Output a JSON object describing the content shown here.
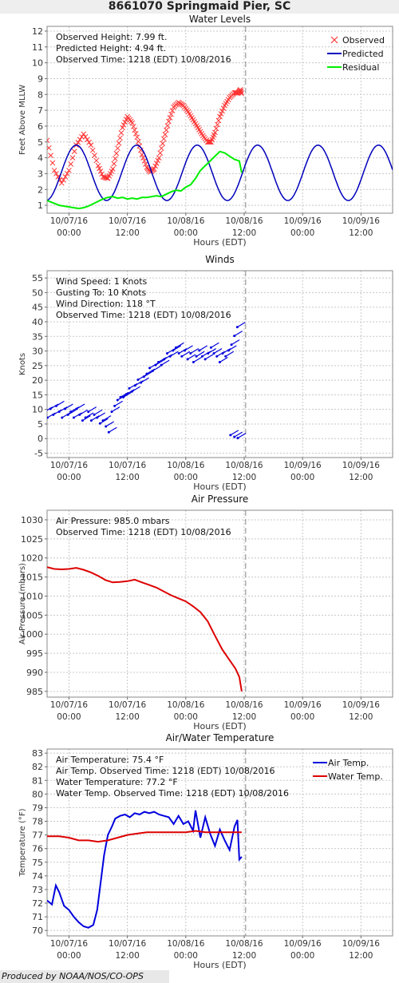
{
  "page": {
    "title": "8661070 Springmaid Pier, SC",
    "footer": "Produced by NOAA/NOS/CO-OPS"
  },
  "x_axis": {
    "label": "Hours (EDT)",
    "ticks": [
      {
        "t": 0,
        "l1": "10/07/16",
        "l2": "00:00"
      },
      {
        "t": 12,
        "l1": "10/07/16",
        "l2": "12:00"
      },
      {
        "t": 24,
        "l1": "10/08/16",
        "l2": "00:00"
      },
      {
        "t": 36,
        "l1": "10/08/16",
        "l2": "12:00"
      },
      {
        "t": 48,
        "l1": "10/09/16",
        "l2": "00:00"
      },
      {
        "t": 60,
        "l1": "10/09/16",
        "l2": "12:00"
      }
    ],
    "range": [
      -4.5,
      66.5
    ],
    "now": 36.3
  },
  "colors": {
    "observed": "#ff3333",
    "predicted": "#0000bb",
    "residual": "#00ee00",
    "wind": "#0000dd",
    "pressure": "#dd0000",
    "air_temp": "#0000dd",
    "water_temp": "#dd0000",
    "grid": "#c8c8c8",
    "now_line": "#888888"
  },
  "chart_data": [
    {
      "type": "line",
      "title": "Water Levels",
      "ylabel": "Feet Above MLLW",
      "ylim": [
        0.5,
        12.3
      ],
      "yticks": [
        1,
        2,
        3,
        4,
        5,
        6,
        7,
        8,
        9,
        10,
        11,
        12
      ],
      "grid": true,
      "legend_position": "top-right",
      "info": [
        "Observed Height:   7.99 ft.",
        "Predicted Height:   4.94 ft.",
        "Observed Time: 1218 (EDT) 10/08/2016"
      ],
      "series": [
        {
          "name": "Observed",
          "marker": "x",
          "points": [
            [
              -4.5,
              5.1
            ],
            [
              -3,
              3.2
            ],
            [
              -1.5,
              2.4
            ],
            [
              0,
              3.2
            ],
            [
              1.5,
              4.8
            ],
            [
              3,
              5.5
            ],
            [
              4.5,
              4.8
            ],
            [
              6,
              3.5
            ],
            [
              7,
              2.8
            ],
            [
              8,
              2.7
            ],
            [
              9,
              3.3
            ],
            [
              10,
              4.6
            ],
            [
              11,
              5.9
            ],
            [
              12,
              6.6
            ],
            [
              13,
              6.2
            ],
            [
              14,
              5.3
            ],
            [
              15,
              4.2
            ],
            [
              16,
              3.4
            ],
            [
              16.7,
              3.1
            ],
            [
              17.5,
              3.3
            ],
            [
              18.5,
              4.0
            ],
            [
              19.5,
              5.2
            ],
            [
              20.5,
              6.3
            ],
            [
              21.5,
              7.2
            ],
            [
              22.5,
              7.5
            ],
            [
              23.5,
              7.3
            ],
            [
              24.5,
              6.9
            ],
            [
              25.5,
              6.4
            ],
            [
              26.5,
              5.9
            ],
            [
              27.5,
              5.4
            ],
            [
              28.5,
              5.0
            ],
            [
              29.2,
              5.0
            ],
            [
              30,
              5.6
            ],
            [
              31,
              6.6
            ],
            [
              32,
              7.3
            ],
            [
              33,
              7.8
            ],
            [
              34,
              8.1
            ],
            [
              34.8,
              8.1
            ],
            [
              35.2,
              8.3
            ],
            [
              35.5,
              7.99
            ]
          ]
        },
        {
          "name": "Predicted",
          "points": "sine:3.05:1.75:12.42:1.5:-4.5:66.5"
        },
        {
          "name": "Residual",
          "points": [
            [
              -4.5,
              1.3
            ],
            [
              -2,
              1.0
            ],
            [
              0,
              0.9
            ],
            [
              1,
              0.85
            ],
            [
              2,
              0.8
            ],
            [
              3,
              0.85
            ],
            [
              4,
              0.95
            ],
            [
              5,
              1.1
            ],
            [
              6,
              1.25
            ],
            [
              7,
              1.4
            ],
            [
              8,
              1.5
            ],
            [
              9,
              1.55
            ],
            [
              10,
              1.45
            ],
            [
              11,
              1.5
            ],
            [
              12,
              1.4
            ],
            [
              13,
              1.45
            ],
            [
              14,
              1.4
            ],
            [
              15,
              1.5
            ],
            [
              16,
              1.5
            ],
            [
              17,
              1.55
            ],
            [
              18,
              1.6
            ],
            [
              19,
              1.55
            ],
            [
              20,
              1.7
            ],
            [
              21,
              1.85
            ],
            [
              22,
              1.95
            ],
            [
              23,
              1.9
            ],
            [
              24,
              2.15
            ],
            [
              25,
              2.3
            ],
            [
              26,
              2.7
            ],
            [
              27,
              3.2
            ],
            [
              28,
              3.5
            ],
            [
              29,
              3.8
            ],
            [
              30,
              4.1
            ],
            [
              31,
              4.4
            ],
            [
              32,
              4.3
            ],
            [
              33,
              4.1
            ],
            [
              34,
              3.9
            ],
            [
              35,
              3.8
            ],
            [
              35.5,
              3.05
            ]
          ]
        }
      ]
    },
    {
      "type": "scatter",
      "title": "Winds",
      "ylabel": "Knots",
      "ylim": [
        -6.5,
        57.5
      ],
      "yticks": [
        -5,
        0,
        5,
        10,
        15,
        20,
        25,
        30,
        35,
        40,
        45,
        50,
        55
      ],
      "grid": true,
      "info": [
        "Wind Speed: 1 Knots",
        "Gusting To: 10 Knots",
        "Wind Direction: 118 °T",
        "Observed Time: 1218 (EDT) 10/08/2016"
      ],
      "series": [
        {
          "name": "Wind",
          "points": [
            [
              -4.2,
              10
            ],
            [
              -3.6,
              8
            ],
            [
              -3,
              11
            ],
            [
              -2.4,
              9
            ],
            [
              -1.8,
              12
            ],
            [
              -1.2,
              10
            ],
            [
              -0.6,
              8
            ],
            [
              0,
              11
            ],
            [
              0.6,
              9
            ],
            [
              1.2,
              10
            ],
            [
              1.8,
              8
            ],
            [
              2.4,
              11
            ],
            [
              3,
              9
            ],
            [
              3.6,
              7
            ],
            [
              4.2,
              8
            ],
            [
              4.8,
              10
            ],
            [
              5.4,
              7
            ],
            [
              6,
              9
            ],
            [
              6.6,
              8
            ],
            [
              7.2,
              6
            ],
            [
              7.8,
              7
            ],
            [
              8.4,
              5
            ],
            [
              9,
              3
            ],
            [
              9.6,
              10
            ],
            [
              10.2,
              12
            ],
            [
              10.8,
              14
            ],
            [
              11.4,
              15
            ],
            [
              12,
              15
            ],
            [
              12.6,
              16
            ],
            [
              13.2,
              18
            ],
            [
              13.8,
              17
            ],
            [
              14.4,
              19
            ],
            [
              15,
              21
            ],
            [
              15.6,
              20
            ],
            [
              16.2,
              22
            ],
            [
              16.8,
              23
            ],
            [
              17.4,
              25
            ],
            [
              18,
              24
            ],
            [
              18.6,
              26
            ],
            [
              19.2,
              27
            ],
            [
              19.8,
              26
            ],
            [
              20.4,
              28
            ],
            [
              21,
              30
            ],
            [
              21.6,
              29
            ],
            [
              22.2,
              31
            ],
            [
              22.8,
              32
            ],
            [
              23.4,
              30
            ],
            [
              24,
              29
            ],
            [
              24.6,
              31
            ],
            [
              25.2,
              28
            ],
            [
              25.8,
              30
            ],
            [
              26.4,
              27
            ],
            [
              27,
              29
            ],
            [
              27.6,
              31
            ],
            [
              28.2,
              29
            ],
            [
              28.8,
              28
            ],
            [
              29.4,
              30
            ],
            [
              30,
              32
            ],
            [
              30.6,
              30
            ],
            [
              31.2,
              29
            ],
            [
              31.8,
              27
            ],
            [
              32.4,
              30
            ],
            [
              33,
              29
            ],
            [
              33.6,
              31
            ],
            [
              34.2,
              33
            ],
            [
              34.8,
              36
            ],
            [
              35.4,
              39
            ],
            [
              34,
              2
            ],
            [
              34.8,
              1.4
            ],
            [
              35.5,
              1
            ]
          ]
        }
      ]
    },
    {
      "type": "line",
      "title": "Air Pressure",
      "ylabel": "Air Pressure (mbars)",
      "ylim": [
        983.5,
        1032.5
      ],
      "yticks": [
        985,
        990,
        995,
        1000,
        1005,
        1010,
        1015,
        1020,
        1025,
        1030
      ],
      "grid": true,
      "info": [
        "Air Pressure: 985.0 mbars",
        "Observed Time: 1218 (EDT) 10/08/2016"
      ],
      "series": [
        {
          "name": "Air Pressure",
          "points": [
            [
              -4.5,
              1017.6
            ],
            [
              -3,
              1017.1
            ],
            [
              -1.5,
              1017
            ],
            [
              0,
              1017.1
            ],
            [
              1.5,
              1017.4
            ],
            [
              3,
              1016.9
            ],
            [
              4.5,
              1016.2
            ],
            [
              6,
              1015.3
            ],
            [
              7.5,
              1014.2
            ],
            [
              9,
              1013.6
            ],
            [
              10.5,
              1013.7
            ],
            [
              12,
              1013.9
            ],
            [
              13.5,
              1014.3
            ],
            [
              15,
              1013.6
            ],
            [
              16.5,
              1012.9
            ],
            [
              18,
              1012.2
            ],
            [
              19.5,
              1011.2
            ],
            [
              21,
              1010.2
            ],
            [
              22.5,
              1009.4
            ],
            [
              24,
              1008.6
            ],
            [
              25.5,
              1007.3
            ],
            [
              27,
              1005.8
            ],
            [
              28.5,
              1003.4
            ],
            [
              30,
              999.6
            ],
            [
              31.5,
              996
            ],
            [
              33,
              993.2
            ],
            [
              34.2,
              991
            ],
            [
              35,
              988.8
            ],
            [
              35.5,
              985
            ]
          ]
        }
      ]
    },
    {
      "type": "line",
      "title": "Air/Water Temperature",
      "ylabel": "Temperature (°F)",
      "ylim": [
        69.6,
        83.3
      ],
      "yticks": [
        70,
        71,
        72,
        73,
        74,
        75,
        76,
        77,
        78,
        79,
        80,
        81,
        82,
        83
      ],
      "grid": true,
      "legend_position": "top-right",
      "info": [
        "Air Temperature:  75.4 °F",
        "Air Temp. Observed Time: 1218 (EDT) 10/08/2016",
        "Water Temperature:  77.2 °F",
        "Water Temp. Observed Time: 1218 (EDT) 10/08/2016"
      ],
      "series": [
        {
          "name": "Air Temp.",
          "points": [
            [
              -4.5,
              72.2
            ],
            [
              -3.5,
              71.9
            ],
            [
              -2.7,
              73.3
            ],
            [
              -2,
              72.8
            ],
            [
              -1,
              71.8
            ],
            [
              0,
              71.5
            ],
            [
              1,
              71
            ],
            [
              2,
              70.6
            ],
            [
              3,
              70.3
            ],
            [
              4,
              70.2
            ],
            [
              5,
              70.4
            ],
            [
              5.8,
              71.5
            ],
            [
              6.5,
              73.5
            ],
            [
              7.2,
              75.5
            ],
            [
              8,
              77
            ],
            [
              8.8,
              77.6
            ],
            [
              9.5,
              78.2
            ],
            [
              10.5,
              78.4
            ],
            [
              11.5,
              78.5
            ],
            [
              12.5,
              78.3
            ],
            [
              13.5,
              78.6
            ],
            [
              14.5,
              78.5
            ],
            [
              15.5,
              78.7
            ],
            [
              16.5,
              78.6
            ],
            [
              17.5,
              78.7
            ],
            [
              18.5,
              78.5
            ],
            [
              19.5,
              78.4
            ],
            [
              20.5,
              78.3
            ],
            [
              21.5,
              77.8
            ],
            [
              22.5,
              78.4
            ],
            [
              23.5,
              77.8
            ],
            [
              24.5,
              78
            ],
            [
              25.5,
              77.3
            ],
            [
              26,
              78.8
            ],
            [
              27,
              76.8
            ],
            [
              28,
              78.3
            ],
            [
              29,
              77.1
            ],
            [
              30,
              76.2
            ],
            [
              31,
              77.4
            ],
            [
              32,
              76.6
            ],
            [
              33,
              75.9
            ],
            [
              34,
              77.6
            ],
            [
              34.6,
              78.1
            ],
            [
              35,
              75.2
            ],
            [
              35.5,
              75.4
            ]
          ]
        },
        {
          "name": "Water Temp.",
          "points": [
            [
              -4.5,
              76.9
            ],
            [
              -2,
              76.9
            ],
            [
              0,
              76.8
            ],
            [
              2,
              76.6
            ],
            [
              4,
              76.6
            ],
            [
              6,
              76.5
            ],
            [
              8,
              76.6
            ],
            [
              10,
              76.8
            ],
            [
              12,
              77
            ],
            [
              14,
              77.1
            ],
            [
              16,
              77.2
            ],
            [
              18,
              77.2
            ],
            [
              20,
              77.2
            ],
            [
              22,
              77.2
            ],
            [
              24,
              77.2
            ],
            [
              26,
              77.3
            ],
            [
              28,
              77.2
            ],
            [
              30,
              77.2
            ],
            [
              32,
              77.2
            ],
            [
              34,
              77.2
            ],
            [
              35.5,
              77.2
            ]
          ]
        }
      ]
    }
  ]
}
